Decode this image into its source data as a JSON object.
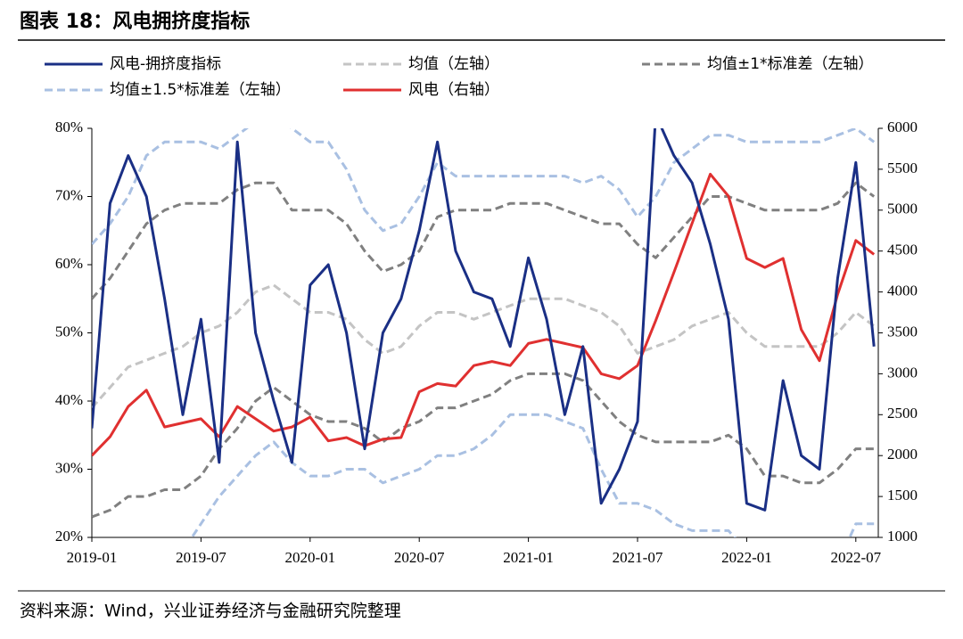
{
  "chart_data": {
    "type": "line",
    "title": "图表 18：风电拥挤度指标",
    "source": "资料来源：Wind，兴业证券经济与金融研究院整理",
    "x": [
      "2019-01",
      "2019-02",
      "2019-03",
      "2019-04",
      "2019-05",
      "2019-06",
      "2019-07",
      "2019-08",
      "2019-09",
      "2019-10",
      "2019-11",
      "2019-12",
      "2020-01",
      "2020-02",
      "2020-03",
      "2020-04",
      "2020-05",
      "2020-06",
      "2020-07",
      "2020-08",
      "2020-09",
      "2020-10",
      "2020-11",
      "2020-12",
      "2021-01",
      "2021-02",
      "2021-03",
      "2021-04",
      "2021-05",
      "2021-06",
      "2021-07",
      "2021-08",
      "2021-09",
      "2021-10",
      "2021-11",
      "2021-12",
      "2022-01",
      "2022-02",
      "2022-03",
      "2022-04",
      "2022-05",
      "2022-06",
      "2022-07",
      "2022-08"
    ],
    "xticks": [
      "2019-01",
      "2019-07",
      "2020-01",
      "2020-07",
      "2021-01",
      "2021-07",
      "2022-01",
      "2022-07"
    ],
    "ylim": [
      20,
      80
    ],
    "yticks": [
      {
        "value": 20,
        "label": "20%"
      },
      {
        "value": 30,
        "label": "30%"
      },
      {
        "value": 40,
        "label": "40%"
      },
      {
        "value": 50,
        "label": "50%"
      },
      {
        "value": 60,
        "label": "60%"
      },
      {
        "value": 70,
        "label": "70%"
      },
      {
        "value": 80,
        "label": "80%"
      }
    ],
    "y2lim": [
      1000,
      6000
    ],
    "y2ticks": [
      1000,
      1500,
      2000,
      2500,
      3000,
      3500,
      4000,
      4500,
      5000,
      5500,
      6000
    ],
    "series": [
      {
        "name": "风电-拥挤度指标",
        "color": "#1a2f85",
        "style": "solid",
        "width": 3,
        "values": [
          36,
          69,
          76,
          70,
          55,
          38,
          52,
          31,
          78,
          50,
          40,
          31,
          57,
          60,
          50,
          33,
          50,
          55,
          65,
          78,
          62,
          56,
          55,
          48,
          61,
          52,
          38,
          48,
          25,
          30,
          37,
          82,
          76,
          72,
          63,
          52,
          25,
          24,
          43,
          32,
          30,
          58,
          75,
          48
        ]
      },
      {
        "name": "均值（左轴）",
        "color": "#c4c4c4",
        "style": "dashed",
        "width": 3,
        "values": [
          39,
          42,
          45,
          46,
          47,
          48,
          50,
          51,
          53,
          56,
          57,
          55,
          53,
          53,
          52,
          49,
          47,
          48,
          51,
          53,
          53,
          52,
          53,
          54,
          55,
          55,
          55,
          54,
          53,
          51,
          47,
          48,
          49,
          51,
          52,
          53,
          50,
          48,
          48,
          48,
          48,
          50,
          53,
          51
        ]
      },
      {
        "name": "均值±1*标准差（左轴）",
        "color": "#808080",
        "style": "dashed",
        "width": 3,
        "upper": [
          55,
          58,
          62,
          66,
          68,
          69,
          69,
          69,
          71,
          72,
          72,
          68,
          68,
          68,
          66,
          62,
          59,
          60,
          62,
          67,
          68,
          68,
          68,
          69,
          69,
          69,
          68,
          67,
          66,
          66,
          63,
          61,
          64,
          67,
          70,
          70,
          69,
          68,
          68,
          68,
          68,
          69,
          72,
          70
        ],
        "lower": [
          23,
          24,
          26,
          26,
          27,
          27,
          29,
          33,
          36,
          40,
          42,
          40,
          38,
          37,
          37,
          36,
          34,
          36,
          37,
          39,
          39,
          40,
          41,
          43,
          44,
          44,
          44,
          43,
          40,
          37,
          35,
          34,
          34,
          34,
          34,
          35,
          33,
          29,
          29,
          28,
          28,
          30,
          33,
          33
        ]
      },
      {
        "name": "均值±1.5*标准差（左轴）",
        "color": "#a9c0e2",
        "style": "dashed",
        "width": 3,
        "upper": [
          63,
          66,
          70,
          76,
          78,
          78,
          78,
          77,
          79,
          81,
          82,
          80,
          78,
          78,
          74,
          68,
          65,
          66,
          70,
          75,
          73,
          73,
          73,
          73,
          73,
          73,
          73,
          72,
          73,
          71,
          67,
          70,
          75,
          77,
          79,
          79,
          78,
          78,
          78,
          78,
          78,
          79,
          80,
          78
        ],
        "lower": [
          10,
          12,
          14,
          15,
          16,
          18,
          22,
          26,
          29,
          32,
          34,
          31,
          29,
          29,
          30,
          30,
          28,
          29,
          30,
          32,
          32,
          33,
          35,
          38,
          38,
          38,
          37,
          36,
          30,
          25,
          25,
          24,
          22,
          21,
          21,
          21,
          18,
          14,
          13,
          13,
          14,
          16,
          22,
          22
        ]
      },
      {
        "name": "风电（右轴）",
        "color": "#e03030",
        "style": "solid",
        "width": 3,
        "axis": "y2",
        "values": [
          2000,
          2230,
          2600,
          2800,
          2350,
          2400,
          2450,
          2230,
          2600,
          2450,
          2300,
          2350,
          2470,
          2180,
          2220,
          2120,
          2200,
          2220,
          2780,
          2880,
          2850,
          3100,
          3150,
          3100,
          3370,
          3420,
          3370,
          3320,
          3000,
          2940,
          3100,
          3650,
          4240,
          4840,
          5440,
          5170,
          4410,
          4300,
          4410,
          3540,
          3160,
          3970,
          4630,
          4460
        ]
      }
    ]
  }
}
